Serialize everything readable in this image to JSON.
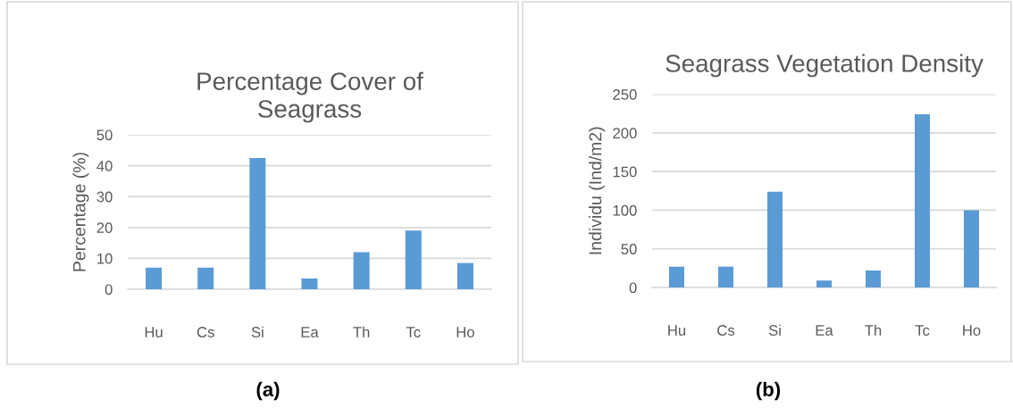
{
  "chart_data": [
    {
      "type": "bar",
      "title": "Percentage Cover of\nSeagrass",
      "ylabel": "Percentage (%)",
      "categories": [
        "Hu",
        "Cs",
        "Si",
        "Ea",
        "Th",
        "Tc",
        "Ho"
      ],
      "values": [
        7,
        7,
        42.5,
        3.5,
        12,
        19,
        8.5
      ],
      "color": "#5b9bd5",
      "ylim": [
        0,
        50
      ],
      "yticks": [
        0,
        10,
        20,
        30,
        40,
        50
      ],
      "grid": "y",
      "annotations": [
        "(a)"
      ]
    },
    {
      "type": "bar",
      "title": "Seagrass Vegetation Density",
      "ylabel": "Individu (Ind/m2)",
      "categories": [
        "Hu",
        "Cs",
        "Si",
        "Ea",
        "Th",
        "Tc",
        "Ho"
      ],
      "values": [
        27,
        27,
        124,
        9,
        22,
        224,
        100
      ],
      "color": "#5b9bd5",
      "ylim": [
        0,
        250
      ],
      "yticks": [
        0,
        50,
        100,
        150,
        200,
        250
      ],
      "grid": "y",
      "annotations": [
        "(b)"
      ]
    }
  ]
}
